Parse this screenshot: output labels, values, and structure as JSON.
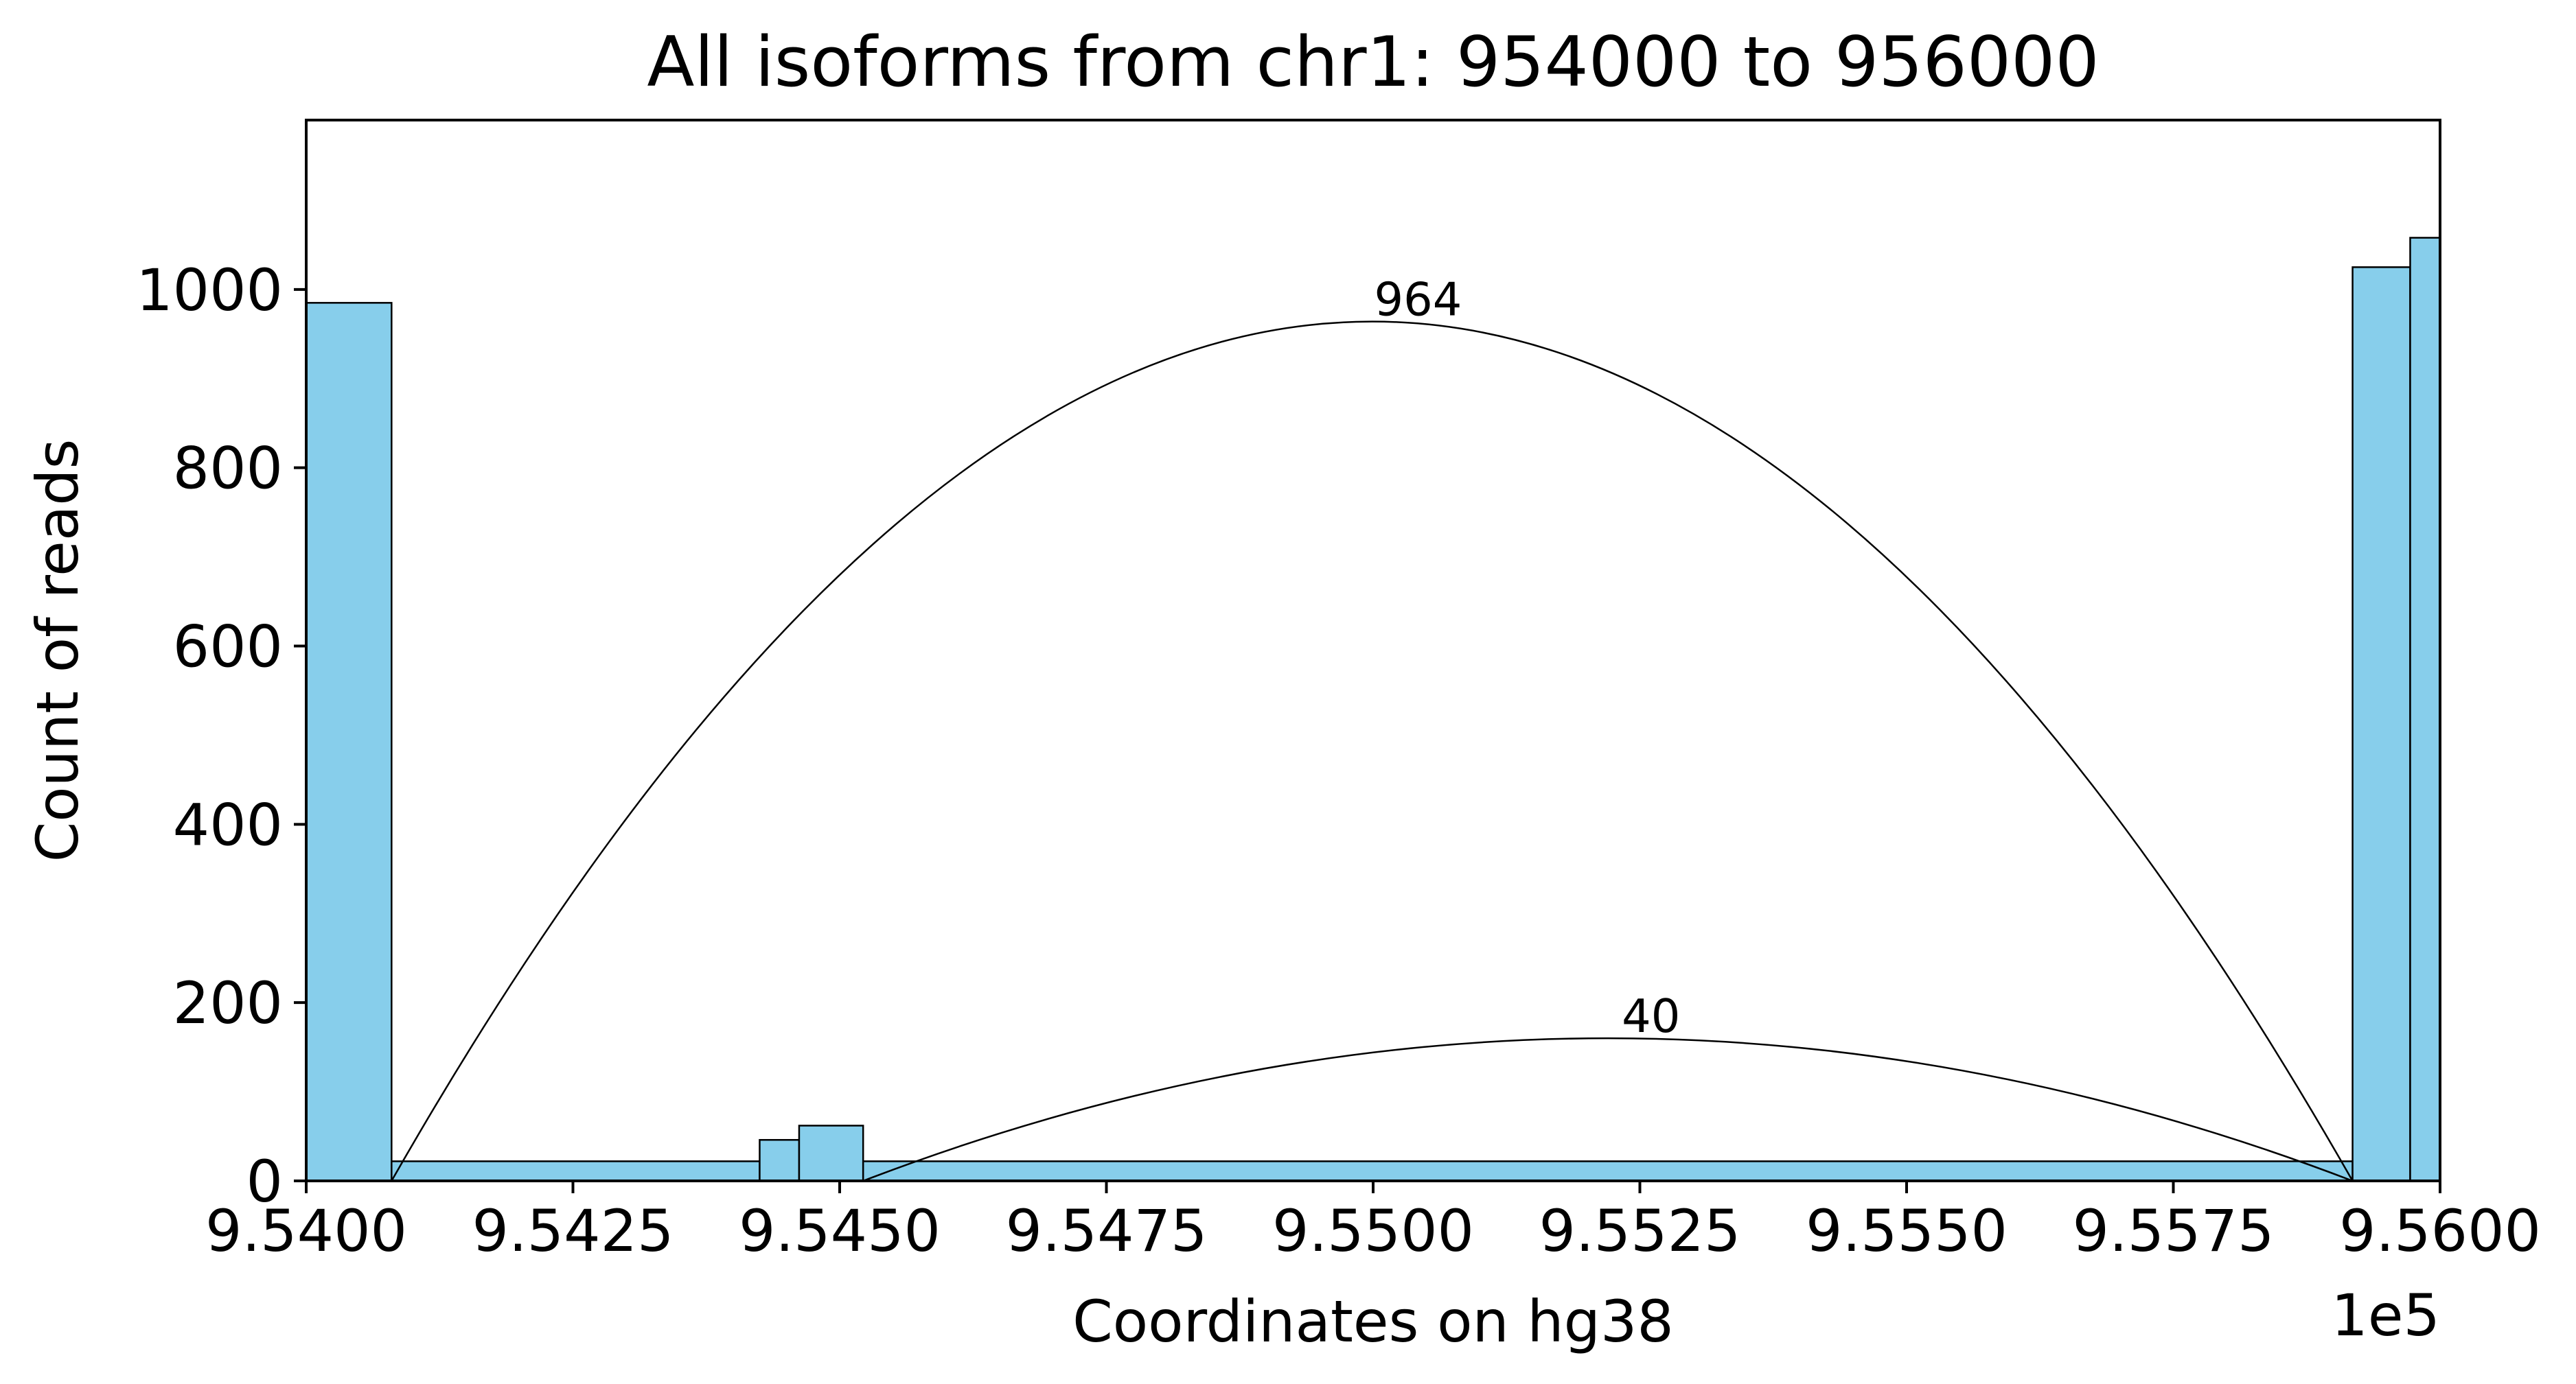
{
  "chart_data": {
    "type": "bar",
    "title": "All isoforms from chr1: 954000 to 956000",
    "xlabel": "Coordinates on hg38",
    "ylabel": "Count of reads",
    "x_offset_label": "1e5",
    "xlim": [
      954000,
      956000
    ],
    "ylim": [
      0,
      1190
    ],
    "xticks": [
      954000,
      954250,
      954500,
      954750,
      955000,
      955250,
      955500,
      955750,
      956000
    ],
    "xtick_labels": [
      "9.5400",
      "9.5425",
      "9.5450",
      "9.5475",
      "9.5500",
      "9.5525",
      "9.5550",
      "9.5575",
      "9.5600"
    ],
    "yticks": [
      0,
      200,
      400,
      600,
      800,
      1000
    ],
    "ytick_labels": [
      "0",
      "200",
      "400",
      "600",
      "800",
      "1000"
    ],
    "bar_color": "#87CEEB",
    "edge_color": "#000000",
    "bars": [
      {
        "x0": 954000,
        "x1": 954080,
        "count": 985
      },
      {
        "x0": 954080,
        "x1": 954425,
        "count": 22
      },
      {
        "x0": 954425,
        "x1": 954462,
        "count": 46
      },
      {
        "x0": 954462,
        "x1": 954522,
        "count": 62
      },
      {
        "x0": 954522,
        "x1": 955918,
        "count": 22
      },
      {
        "x0": 955918,
        "x1": 955972,
        "count": 1025
      },
      {
        "x0": 955972,
        "x1": 956000,
        "count": 1058
      }
    ],
    "junctions": [
      {
        "start": 954080,
        "end": 955918,
        "count": 964,
        "label": "964",
        "apex": 964,
        "label_x": 955001
      },
      {
        "start": 954522,
        "end": 955918,
        "count": 40,
        "label": "40",
        "apex": 160,
        "label_x": 955233
      }
    ],
    "grid": false
  }
}
